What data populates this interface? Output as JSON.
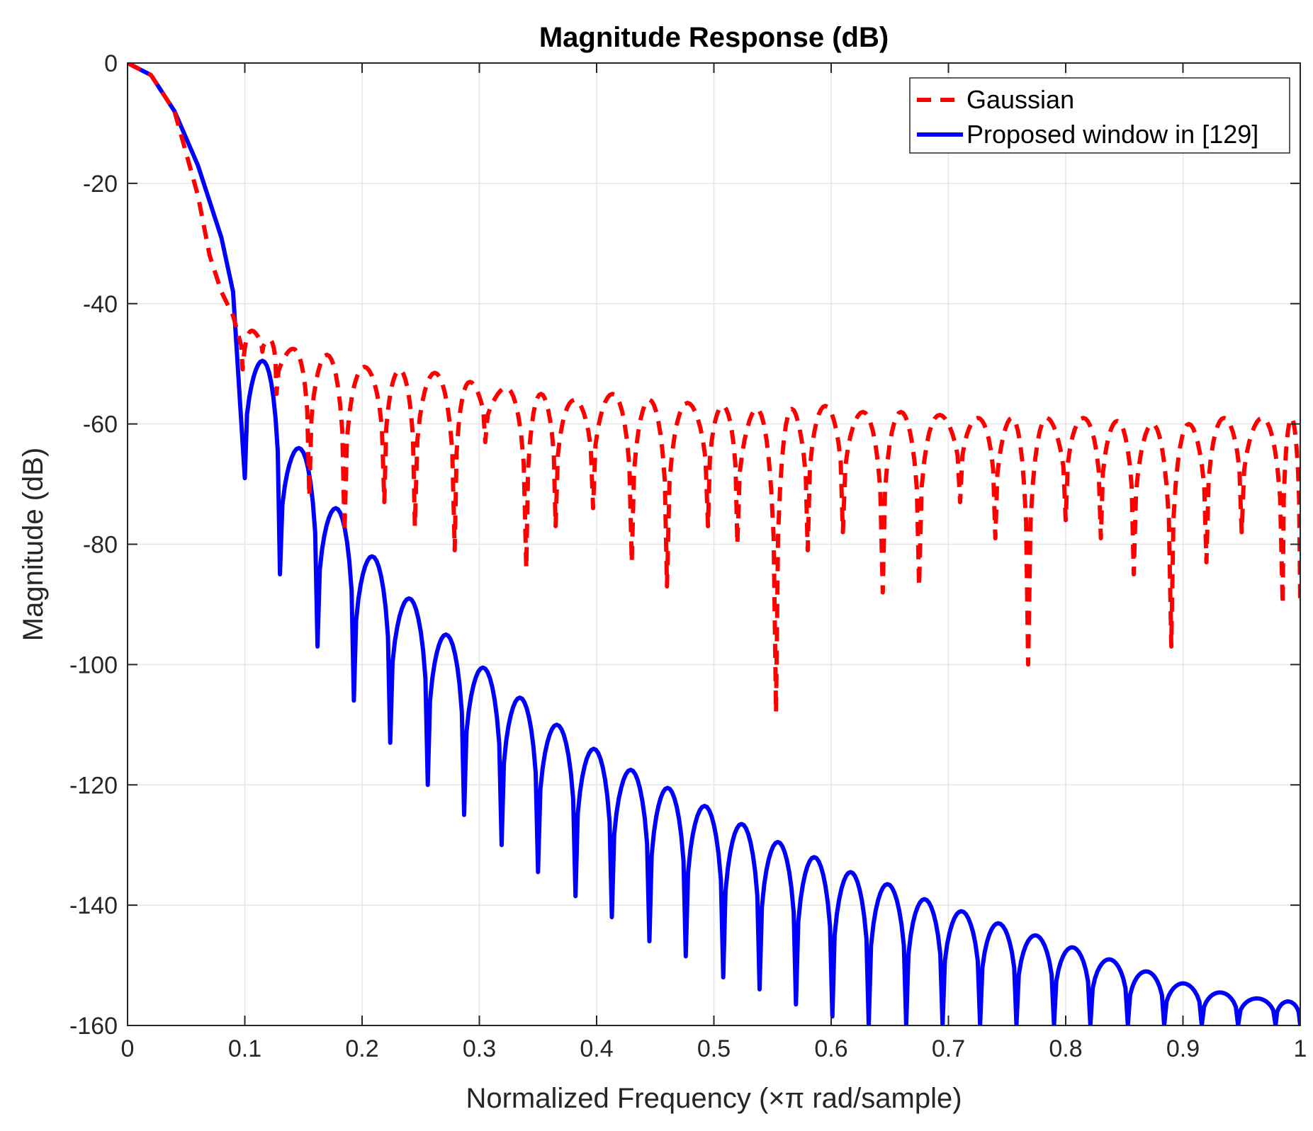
{
  "chart_data": {
    "type": "line",
    "title": "Magnitude Response (dB)",
    "xlabel": "Normalized Frequency (×π rad/sample)",
    "ylabel": "Magnitude (dB)",
    "xlim": [
      0,
      1
    ],
    "ylim": [
      -160,
      0
    ],
    "xticks": [
      0,
      0.1,
      0.2,
      0.3,
      0.4,
      0.5,
      0.6,
      0.7,
      0.8,
      0.9,
      1
    ],
    "xtick_labels": [
      "0",
      "0.1",
      "0.2",
      "0.3",
      "0.4",
      "0.5",
      "0.6",
      "0.7",
      "0.8",
      "0.9",
      "1"
    ],
    "yticks": [
      0,
      -20,
      -40,
      -60,
      -80,
      -100,
      -120,
      -140,
      -160
    ],
    "ytick_labels": [
      "0",
      "-20",
      "-40",
      "-60",
      "-80",
      "-100",
      "-120",
      "-140",
      "-160"
    ],
    "grid": true,
    "legend_position": "top-right",
    "colors": {
      "gaussian": "#ff0000",
      "proposed": "#0000ff",
      "grid": "#e6e6e6",
      "axes": "#262626"
    },
    "series": [
      {
        "name": "Gaussian",
        "style": "dashed",
        "main_lobe": [
          [
            0,
            0
          ],
          [
            0.02,
            -2
          ],
          [
            0.04,
            -8
          ],
          [
            0.06,
            -22
          ],
          [
            0.07,
            -32
          ],
          [
            0.08,
            -38
          ],
          [
            0.09,
            -42
          ],
          [
            0.097,
            -47
          ]
        ],
        "sidelobe_peaks": [
          [
            0.103,
            -44.5
          ],
          [
            0.132,
            -46
          ],
          [
            0.163,
            -47.5
          ],
          [
            0.193,
            -48.5
          ],
          [
            0.223,
            -50.5
          ],
          [
            0.253,
            -51
          ],
          [
            0.283,
            -51.5
          ],
          [
            0.313,
            -53
          ],
          [
            0.343,
            -54
          ],
          [
            0.373,
            -55
          ],
          [
            0.403,
            -56
          ],
          [
            0.433,
            -55
          ],
          [
            0.463,
            -56
          ],
          [
            0.493,
            -56.5
          ],
          [
            0.523,
            -57
          ],
          [
            0.553,
            -57.5
          ],
          [
            0.583,
            -57.5
          ],
          [
            0.613,
            -57
          ],
          [
            0.643,
            -58
          ],
          [
            0.673,
            -58
          ],
          [
            0.703,
            -58.5
          ],
          [
            0.733,
            -59
          ],
          [
            0.763,
            -59
          ],
          [
            0.793,
            -59
          ],
          [
            0.823,
            -59
          ],
          [
            0.853,
            -59.5
          ],
          [
            0.883,
            -60
          ],
          [
            0.913,
            -60
          ],
          [
            0.943,
            -59
          ],
          [
            0.973,
            -59
          ],
          [
            1.0,
            -59
          ]
        ],
        "nulls": [
          [
            0.097,
            -60
          ],
          [
            0.115,
            -48
          ],
          [
            0.127,
            -55
          ],
          [
            0.155,
            -72
          ],
          [
            0.185,
            -78
          ],
          [
            0.219,
            -73
          ],
          [
            0.245,
            -77
          ],
          [
            0.279,
            -81
          ],
          [
            0.305,
            -63
          ],
          [
            0.34,
            -84
          ],
          [
            0.365,
            -77
          ],
          [
            0.397,
            -74
          ],
          [
            0.43,
            -83
          ],
          [
            0.46,
            -87
          ],
          [
            0.495,
            -77
          ],
          [
            0.52,
            -80
          ],
          [
            0.553,
            -108
          ],
          [
            0.58,
            -81
          ],
          [
            0.61,
            -78
          ],
          [
            0.644,
            -88
          ],
          [
            0.675,
            -87
          ],
          [
            0.71,
            -73
          ],
          [
            0.74,
            -79
          ],
          [
            0.768,
            -100
          ],
          [
            0.8,
            -76
          ],
          [
            0.83,
            -79
          ],
          [
            0.858,
            -85
          ],
          [
            0.89,
            -97
          ],
          [
            0.92,
            -83
          ],
          [
            0.95,
            -78
          ],
          [
            0.985,
            -90
          ]
        ]
      },
      {
        "name": "Proposed window in [129]",
        "style": "solid",
        "main_lobe": [
          [
            0,
            0
          ],
          [
            0.02,
            -2
          ],
          [
            0.04,
            -8
          ],
          [
            0.06,
            -17
          ],
          [
            0.08,
            -29
          ],
          [
            0.09,
            -38
          ],
          [
            0.1,
            -69
          ]
        ],
        "sidelobe_peaks": [
          [
            0.11,
            -49.5
          ],
          [
            0.142,
            -64
          ],
          [
            0.173,
            -74
          ],
          [
            0.205,
            -82
          ],
          [
            0.238,
            -89
          ],
          [
            0.27,
            -95
          ],
          [
            0.3,
            -100.5
          ],
          [
            0.333,
            -105.5
          ],
          [
            0.365,
            -110
          ],
          [
            0.396,
            -114
          ],
          [
            0.428,
            -117.5
          ],
          [
            0.46,
            -120.5
          ],
          [
            0.49,
            -123.5
          ],
          [
            0.522,
            -126.5
          ],
          [
            0.554,
            -129.5
          ],
          [
            0.585,
            -132
          ],
          [
            0.617,
            -134.5
          ],
          [
            0.648,
            -136.5
          ],
          [
            0.68,
            -139
          ],
          [
            0.712,
            -141
          ],
          [
            0.743,
            -143
          ],
          [
            0.775,
            -145
          ],
          [
            0.807,
            -147
          ],
          [
            0.838,
            -149
          ],
          [
            0.87,
            -151
          ],
          [
            0.902,
            -153
          ],
          [
            0.933,
            -154.5
          ],
          [
            0.965,
            -155.5
          ],
          [
            0.997,
            -156
          ]
        ],
        "nulls": [
          [
            0.1,
            -69
          ],
          [
            0.13,
            -85
          ],
          [
            0.162,
            -97
          ],
          [
            0.193,
            -106
          ],
          [
            0.224,
            -113
          ],
          [
            0.256,
            -120
          ],
          [
            0.287,
            -125
          ],
          [
            0.319,
            -130
          ],
          [
            0.35,
            -134.5
          ],
          [
            0.382,
            -138.5
          ],
          [
            0.413,
            -142
          ],
          [
            0.445,
            -146
          ],
          [
            0.476,
            -148.5
          ],
          [
            0.508,
            -152
          ],
          [
            0.539,
            -154
          ],
          [
            0.57,
            -156.5
          ],
          [
            0.601,
            -158.5
          ],
          [
            0.632,
            -160
          ],
          [
            0.664,
            -160
          ],
          [
            0.695,
            -160
          ],
          [
            0.727,
            -160
          ],
          [
            0.758,
            -160
          ],
          [
            0.79,
            -160
          ],
          [
            0.821,
            -160
          ],
          [
            0.853,
            -160
          ],
          [
            0.884,
            -160
          ],
          [
            0.916,
            -160
          ],
          [
            0.947,
            -160
          ],
          [
            0.979,
            -160
          ]
        ]
      }
    ]
  }
}
